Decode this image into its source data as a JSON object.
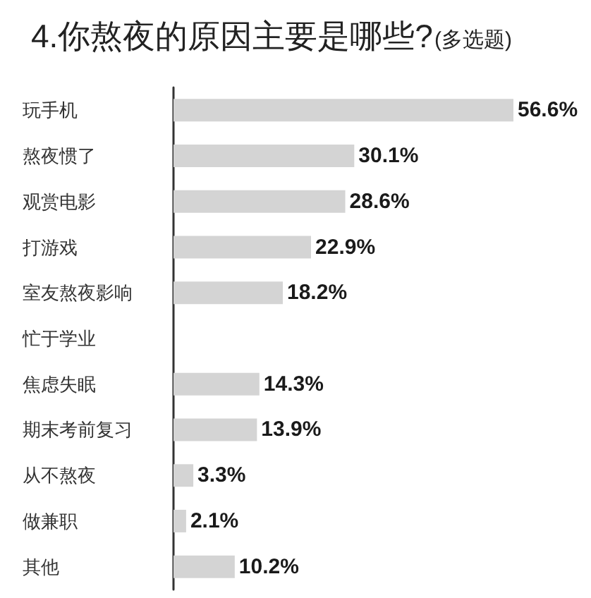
{
  "chart_data": {
    "type": "bar",
    "orientation": "horizontal",
    "title": "4.你熬夜的原因主要是哪些?",
    "subtitle": "(多选题)",
    "categories": [
      "玩手机",
      "熬夜惯了",
      "观赏电影",
      "打游戏",
      "室友熬夜影响",
      "忙于学业",
      "焦虑失眠",
      "期末考前复习",
      "从不熬夜",
      "做兼职",
      "其他"
    ],
    "values": [
      56.6,
      30.1,
      28.6,
      22.9,
      18.2,
      null,
      14.3,
      13.9,
      3.3,
      2.1,
      10.2
    ],
    "value_labels": [
      "56.6%",
      "30.1%",
      "28.6%",
      "22.9%",
      "18.2%",
      null,
      "14.3%",
      "13.9%",
      "3.3%",
      "2.1%",
      "10.2%"
    ],
    "color": "#d4d4d4",
    "tick_labels": "y"
  }
}
